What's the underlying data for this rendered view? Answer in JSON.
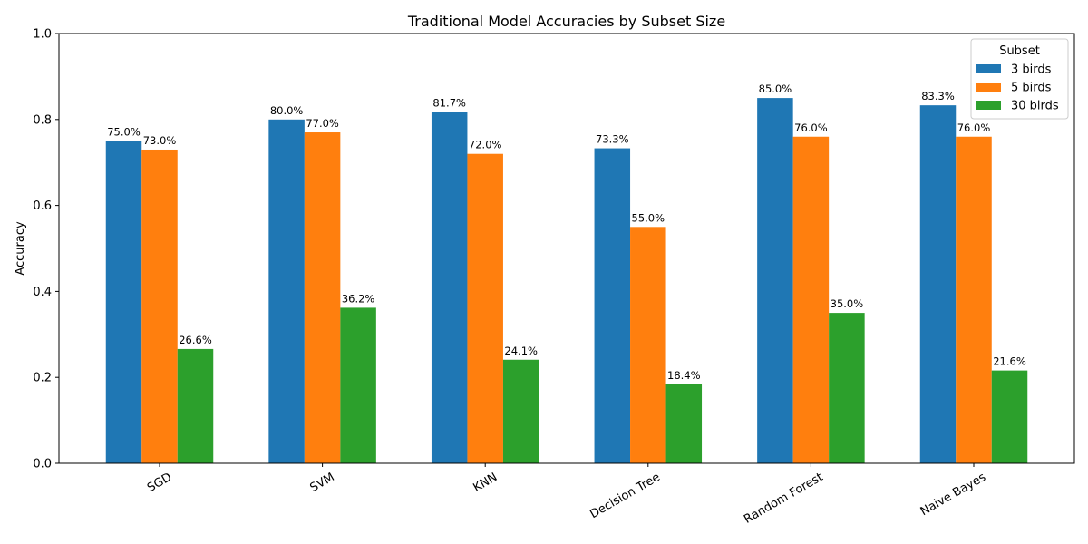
{
  "chart_data": {
    "type": "bar",
    "title": "Traditional Model Accuracies by Subset Size",
    "xlabel": "",
    "ylabel": "Accuracy",
    "ylim": [
      0,
      1.0
    ],
    "yticks": [
      0.0,
      0.2,
      0.4,
      0.6,
      0.8,
      1.0
    ],
    "ytick_labels": [
      "0.0",
      "0.2",
      "0.4",
      "0.6",
      "0.8",
      "1.0"
    ],
    "categories": [
      "SGD",
      "SVM",
      "KNN",
      "Decision Tree",
      "Random Forest",
      "Naive Bayes"
    ],
    "series": [
      {
        "name": "3 birds",
        "color": "#1f77b4",
        "values": [
          0.75,
          0.8,
          0.817,
          0.733,
          0.85,
          0.833
        ],
        "labels": [
          "75.0%",
          "80.0%",
          "81.7%",
          "73.3%",
          "85.0%",
          "83.3%"
        ]
      },
      {
        "name": "5 birds",
        "color": "#ff7f0e",
        "values": [
          0.73,
          0.77,
          0.72,
          0.55,
          0.76,
          0.76
        ],
        "labels": [
          "73.0%",
          "77.0%",
          "72.0%",
          "55.0%",
          "76.0%",
          "76.0%"
        ]
      },
      {
        "name": "30 birds",
        "color": "#2ca02c",
        "values": [
          0.266,
          0.362,
          0.241,
          0.184,
          0.35,
          0.216
        ],
        "labels": [
          "26.6%",
          "36.2%",
          "24.1%",
          "18.4%",
          "35.0%",
          "21.6%"
        ]
      }
    ],
    "legend": {
      "title": "Subset",
      "position": "top-right"
    },
    "grid": false
  }
}
